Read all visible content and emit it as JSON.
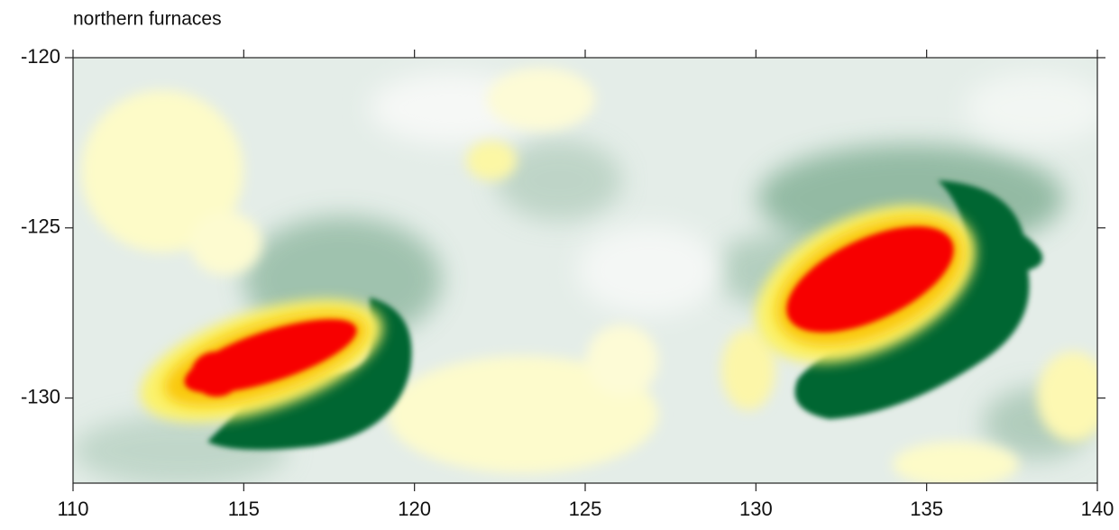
{
  "chart_data": {
    "type": "heatmap",
    "title": "northern furnaces",
    "xlim": [
      110,
      140
    ],
    "xticks": [
      110,
      115,
      120,
      125,
      130,
      135,
      140
    ],
    "ylim": [
      -132.5,
      -120
    ],
    "yticks": [
      -130,
      -125,
      -120
    ]
  }
}
